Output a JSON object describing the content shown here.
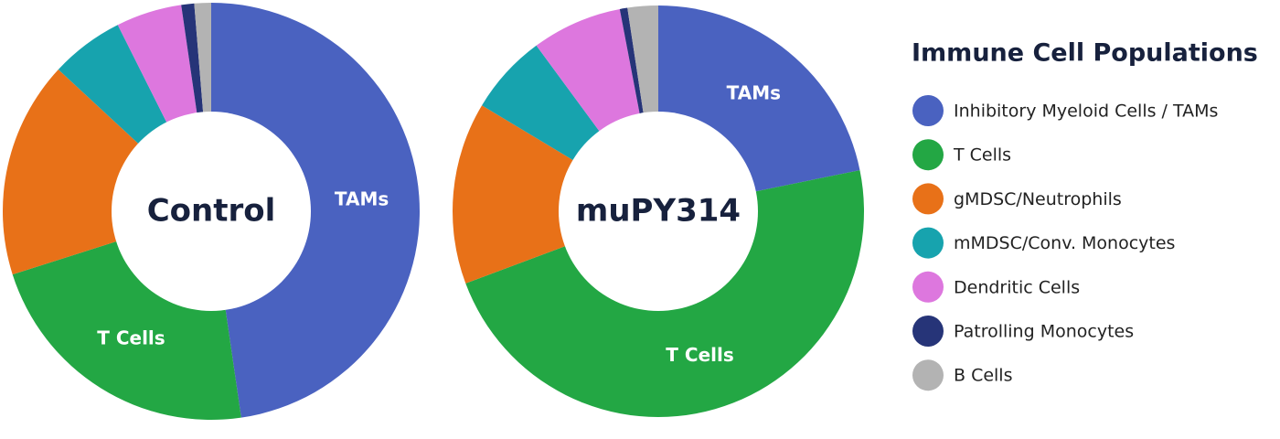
{
  "chart_data": [
    {
      "type": "pie",
      "title": "Control",
      "categories": [
        "Inhibitory Myeloid Cells / TAMs",
        "T Cells",
        "gMDSC/Neutrophils",
        "mMDSC/Conv. Monocytes",
        "Dendritic Cells",
        "Patrolling Monocytes",
        "B Cells"
      ],
      "values": [
        47.7,
        22.4,
        16.8,
        5.7,
        5.1,
        1.0,
        1.3
      ],
      "colors": [
        "#4a62c0",
        "#23a744",
        "#e87118",
        "#17a3ae",
        "#dd77de",
        "#263478",
        "#b3b3b3"
      ],
      "slice_labels": [
        "TAMs",
        "T Cells",
        null,
        null,
        null,
        null,
        null
      ]
    },
    {
      "type": "pie",
      "title": "muPY314",
      "values": [
        21.8,
        47.5,
        14.3,
        6.3,
        7.1,
        0.6,
        2.4
      ],
      "colors": [
        "#4a62c0",
        "#23a744",
        "#e87118",
        "#17a3ae",
        "#dd77de",
        "#263478",
        "#b3b3b3"
      ],
      "slice_labels": [
        "TAMs",
        "T Cells",
        null,
        null,
        null,
        null,
        null
      ]
    }
  ],
  "legend_title": "Immune Cell Populations"
}
